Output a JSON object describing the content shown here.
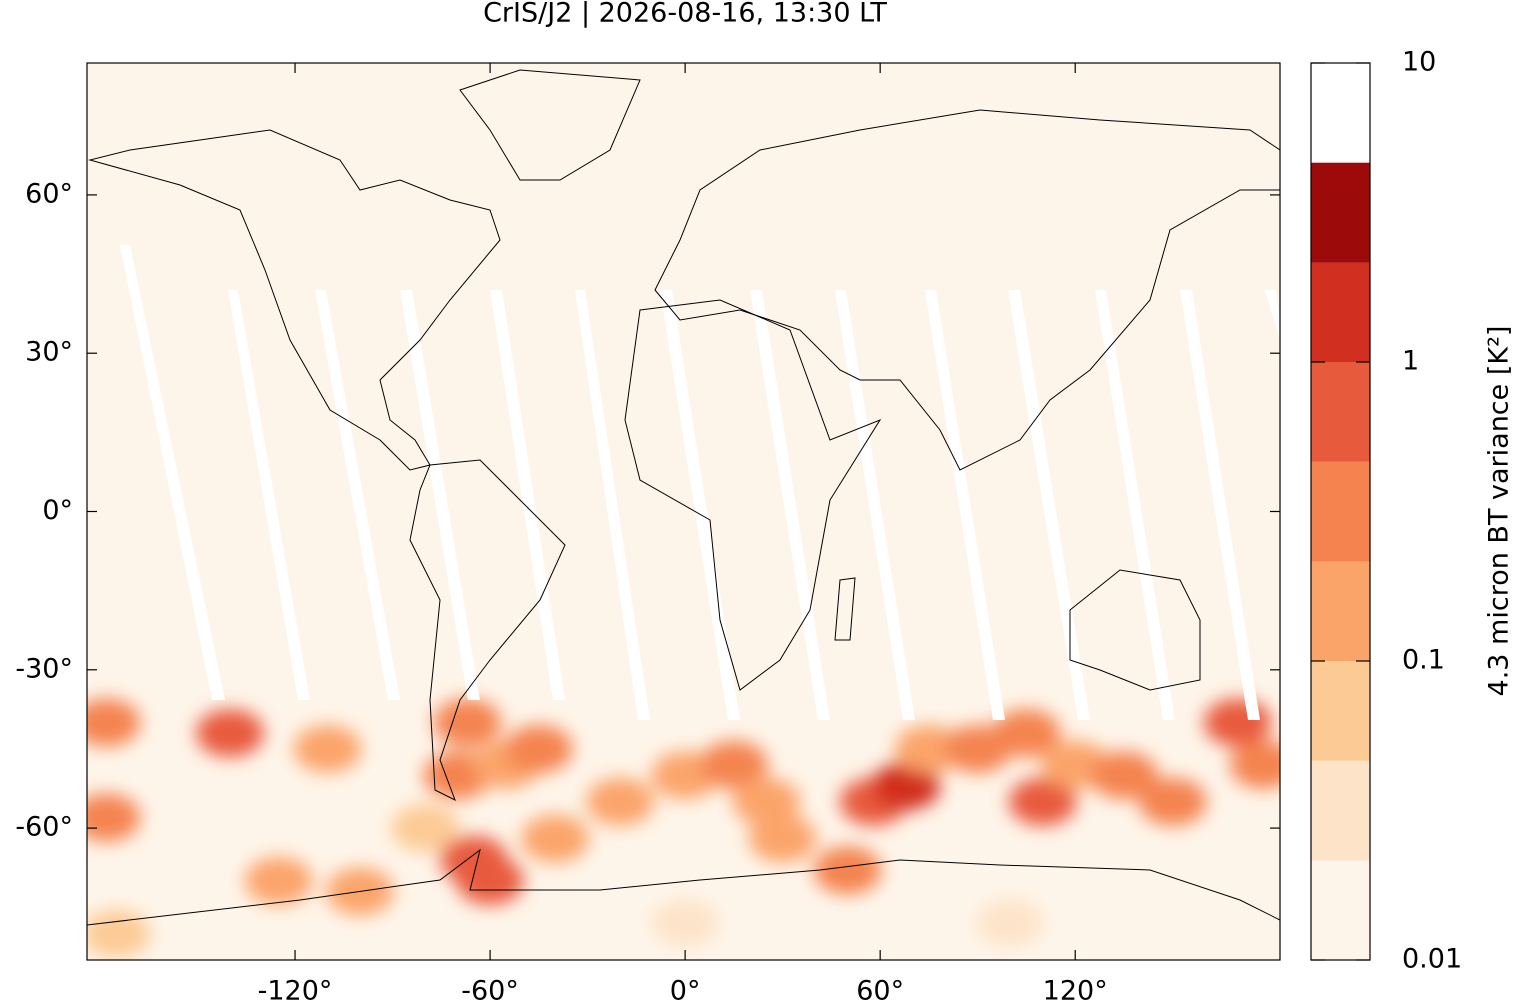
{
  "chart_data": {
    "type": "heatmap",
    "title": "CrIS/J2 | 2026-08-16, 13:30 LT",
    "xlim": [
      -184,
      183
    ],
    "ylim": [
      -85,
      85
    ],
    "xticks": [
      {
        "value": -120,
        "label": "-120°"
      },
      {
        "value": -60,
        "label": "-60°"
      },
      {
        "value": 0,
        "label": "0°"
      },
      {
        "value": 60,
        "label": "60°"
      },
      {
        "value": 120,
        "label": "120°"
      }
    ],
    "yticks": [
      {
        "value": -60,
        "label": "-60°"
      },
      {
        "value": -30,
        "label": "-30°"
      },
      {
        "value": 0,
        "label": "0°"
      },
      {
        "value": 30,
        "label": "30°"
      },
      {
        "value": 60,
        "label": "60°"
      }
    ],
    "colorbar": {
      "label": "4.3 micron BT variance [K²]",
      "log_scale": true,
      "lim": [
        0.01,
        10
      ],
      "ticks": [
        0.01,
        0.1,
        1,
        10
      ],
      "levels": [
        0.01,
        0.0215,
        0.0464,
        0.1,
        0.215,
        0.464,
        1,
        2.15,
        4.64,
        10
      ],
      "colors": [
        "#fef5ea",
        "#fde4c9",
        "#fccb95",
        "#fba46a",
        "#f4834f",
        "#e85a3c",
        "#d12f1f",
        "#9c0a0a"
      ]
    },
    "x": [
      -140,
      -178,
      -178,
      -110,
      -125,
      -100,
      -80,
      -67,
      -70,
      -55,
      -45,
      -60,
      -65,
      -40,
      -20,
      0,
      15,
      25,
      30,
      50,
      58,
      68,
      75,
      90,
      105,
      110,
      120,
      135,
      150,
      170,
      178,
      -175,
      0,
      100
    ],
    "y": [
      -42,
      -40,
      -58,
      -45,
      -70,
      -72,
      -60,
      -40,
      -50,
      -48,
      -45,
      -70,
      -66,
      -62,
      -55,
      -50,
      -48,
      -55,
      -62,
      -68,
      -55,
      -52,
      -45,
      -45,
      -42,
      -55,
      -48,
      -50,
      -55,
      -40,
      -48,
      -80,
      -78,
      -78
    ],
    "values": [
      0.5,
      0.3,
      0.3,
      0.1,
      0.2,
      0.15,
      0.08,
      0.4,
      0.3,
      0.2,
      0.3,
      0.6,
      0.8,
      0.2,
      0.1,
      0.15,
      0.3,
      0.2,
      0.15,
      0.4,
      0.5,
      2,
      0.2,
      0.4,
      0.3,
      0.5,
      0.2,
      0.3,
      0.25,
      0.5,
      0.4,
      0.05,
      0.04,
      0.04
    ]
  }
}
